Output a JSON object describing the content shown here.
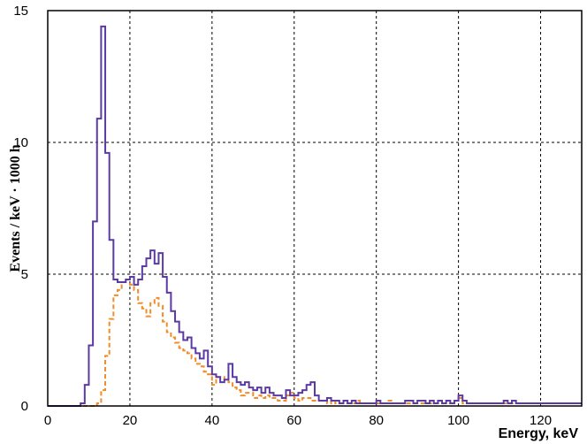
{
  "chart_data": {
    "type": "line",
    "step": true,
    "title": "",
    "xlabel": "Energy, keV",
    "ylabel": "Events / keV · 1000 h",
    "xlim": [
      0,
      130
    ],
    "ylim": [
      0,
      15
    ],
    "xticks": [
      "0",
      "20",
      "40",
      "60",
      "80",
      "100",
      "120"
    ],
    "yticks": [
      "0",
      "5",
      "10",
      "15"
    ],
    "grid": true,
    "bin_width": 1,
    "x": [
      0,
      1,
      2,
      3,
      4,
      5,
      6,
      7,
      8,
      9,
      10,
      11,
      12,
      13,
      14,
      15,
      16,
      17,
      18,
      19,
      20,
      21,
      22,
      23,
      24,
      25,
      26,
      27,
      28,
      29,
      30,
      31,
      32,
      33,
      34,
      35,
      36,
      37,
      38,
      39,
      40,
      41,
      42,
      43,
      44,
      45,
      46,
      47,
      48,
      49,
      50,
      51,
      52,
      53,
      54,
      55,
      56,
      57,
      58,
      59,
      60,
      61,
      62,
      63,
      64,
      65,
      66,
      67,
      68,
      69,
      70,
      71,
      72,
      73,
      74,
      75,
      76,
      77,
      78,
      79,
      80,
      81,
      82,
      83,
      84,
      85,
      86,
      87,
      88,
      89,
      90,
      91,
      92,
      93,
      94,
      95,
      96,
      97,
      98,
      99,
      100,
      101,
      102,
      103,
      104,
      105,
      106,
      107,
      108,
      109,
      110,
      111,
      112,
      113,
      114,
      115,
      116,
      117,
      118,
      119,
      120,
      121,
      122,
      123,
      124,
      125,
      126,
      127,
      128,
      129
    ],
    "series": [
      {
        "color": "#5b3aa3",
        "dash": "solid",
        "values": [
          0,
          0,
          0,
          0,
          0,
          0,
          0,
          0,
          0.1,
          0.8,
          2.3,
          7.0,
          10.9,
          14.4,
          9.6,
          6.3,
          4.8,
          4.7,
          4.7,
          4.8,
          4.9,
          4.6,
          4.8,
          5.3,
          5.6,
          5.9,
          5.4,
          5.8,
          4.9,
          4.3,
          3.6,
          3.2,
          2.8,
          2.5,
          2.6,
          2.2,
          2.0,
          1.8,
          2.1,
          1.5,
          1.2,
          1.1,
          0.9,
          1.0,
          1.6,
          1.1,
          0.9,
          0.8,
          0.9,
          0.7,
          0.6,
          0.7,
          0.5,
          0.7,
          0.5,
          0.4,
          0.4,
          0.3,
          0.6,
          0.4,
          0.4,
          0.5,
          0.6,
          0.8,
          0.9,
          0.4,
          0.2,
          0.2,
          0.3,
          0.2,
          0.2,
          0.1,
          0.2,
          0.1,
          0.2,
          0.1,
          0.1,
          0.1,
          0.1,
          0.1,
          0.2,
          0.1,
          0.1,
          0.1,
          0.1,
          0.1,
          0.1,
          0.2,
          0.2,
          0.1,
          0.2,
          0.2,
          0.1,
          0.2,
          0.1,
          0.2,
          0.1,
          0.2,
          0.1,
          0.2,
          0.4,
          0.2,
          0.1,
          0.1,
          0.1,
          0.1,
          0.1,
          0.1,
          0.1,
          0.1,
          0.1,
          0.2,
          0.1,
          0.2,
          0.1,
          0.1,
          0.1,
          0.1,
          0.1,
          0.1,
          0.1,
          0.1,
          0.1,
          0.1,
          0.1,
          0.1,
          0.1,
          0.1,
          0.1,
          0.1
        ]
      },
      {
        "color": "#f28c28",
        "dash": "dashed",
        "values": [
          0,
          0,
          0,
          0,
          0,
          0,
          0,
          0,
          0,
          0,
          0,
          0,
          0.1,
          0.6,
          1.9,
          3.3,
          4.2,
          4.4,
          4.7,
          4.8,
          4.6,
          4.4,
          3.9,
          3.7,
          3.4,
          3.9,
          4.1,
          3.8,
          3.2,
          2.8,
          2.6,
          2.4,
          2.2,
          2.1,
          2.0,
          1.8,
          1.6,
          1.5,
          1.3,
          1.2,
          0.8,
          1.1,
          1.1,
          1.0,
          0.9,
          0.7,
          0.6,
          0.4,
          0.5,
          0.5,
          0.3,
          0.4,
          0.3,
          0.4,
          0.3,
          0.3,
          0.2,
          0.2,
          0.4,
          0.5,
          0.3,
          0.2,
          0.3,
          0.3,
          0.2,
          0.2,
          0.2,
          0.2,
          0.1,
          0.2,
          0.1,
          0.1,
          0.1,
          0.1,
          0.1,
          0.2,
          0.1,
          0.1,
          0.1,
          0.1,
          0.1,
          0.1,
          0.1,
          0.2,
          0.1,
          0.1,
          0.1,
          0.1,
          0.1,
          0.1,
          0.1,
          0.1,
          0.1,
          0.1,
          0.1,
          0.1,
          0.1,
          0.1,
          0.1,
          0.2,
          0.3,
          0.1,
          0.1,
          0.1,
          0.1,
          0.1,
          0.1,
          0.1,
          0.1,
          0.1,
          0.1,
          0.1,
          0.1,
          0.1,
          0.1,
          0.1,
          0.1,
          0.1,
          0.1,
          0.1,
          0.1,
          0.1,
          0.1,
          0.1,
          0.1,
          0.1,
          0.1,
          0.1,
          0.1,
          0.1
        ]
      }
    ]
  }
}
